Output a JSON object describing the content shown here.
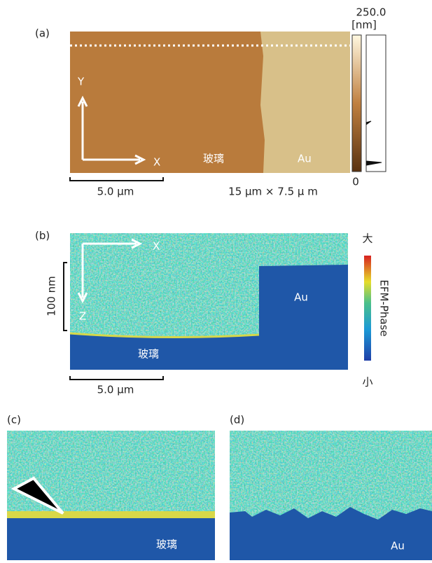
{
  "panel_a": {
    "label": "(a)",
    "scale_max": "250.0",
    "scale_unit": "[nm]",
    "scale_min": "0",
    "y_axis": "Y",
    "x_axis": "X",
    "glass": "玻璃",
    "gold": "Au",
    "scale_bar": "5.0 µm",
    "scan_size": "15 μm × 7.5 μ m"
  },
  "panel_b": {
    "label": "(b)",
    "x_axis": "X",
    "depth_bar": "100 nm",
    "z_axis": "Z",
    "gold": "Au",
    "glass": "玻璃",
    "scale_bar": "5.0 µm",
    "scale_high": "大",
    "scale_title": "EFM-Phase",
    "scale_low": "小"
  },
  "panel_c": {
    "label": "(c)",
    "glass": "玻璃"
  },
  "panel_d": {
    "label": "(d)",
    "gold": "Au"
  }
}
